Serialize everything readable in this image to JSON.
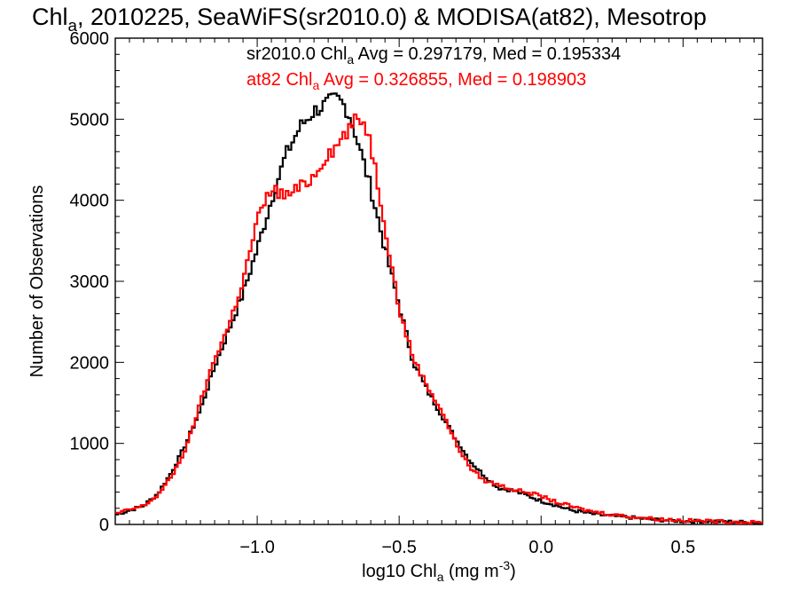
{
  "chart_data": {
    "type": "line",
    "step": true,
    "title": {
      "pre": "Chl",
      "sub": "a",
      "post": ", 2010225, SeaWiFS(sr2010.0) & MODISA(at82), Mesotrop"
    },
    "xlabel": {
      "pre": "log10 Chl",
      "sub": "a",
      "mid": " (mg m",
      "sup": "-3",
      "post": ")"
    },
    "ylabel": "Number of Observations",
    "xlim": [
      -1.5,
      0.78
    ],
    "ylim": [
      0,
      6000
    ],
    "xticks": [
      {
        "v": -1.0,
        "label": "−1.0"
      },
      {
        "v": -0.5,
        "label": "−0.5"
      },
      {
        "v": 0.0,
        "label": "0.0"
      },
      {
        "v": 0.5,
        "label": "0.5"
      }
    ],
    "yticks": [
      {
        "v": 0,
        "label": "0"
      },
      {
        "v": 1000,
        "label": "1000"
      },
      {
        "v": 2000,
        "label": "2000"
      },
      {
        "v": 3000,
        "label": "3000"
      },
      {
        "v": 4000,
        "label": "4000"
      },
      {
        "v": 5000,
        "label": "5000"
      },
      {
        "v": 6000,
        "label": "6000"
      }
    ],
    "grid": false,
    "legend_placement": "top",
    "series": [
      {
        "name": "sr2010.0",
        "color": "#000000",
        "label": {
          "pre": "sr2010.0 Chl",
          "sub": "a",
          "post": " Avg = 0.297179, Med = 0.195334"
        },
        "x": [
          -1.5,
          -1.4,
          -1.35,
          -1.3,
          -1.25,
          -1.2,
          -1.15,
          -1.1,
          -1.05,
          -1.0,
          -0.95,
          -0.9,
          -0.85,
          -0.8,
          -0.75,
          -0.72,
          -0.7,
          -0.68,
          -0.66,
          -0.64,
          -0.62,
          -0.6,
          -0.55,
          -0.5,
          -0.45,
          -0.4,
          -0.35,
          -0.3,
          -0.25,
          -0.2,
          -0.15,
          -0.1,
          -0.05,
          0.0,
          0.05,
          0.1,
          0.15,
          0.2,
          0.3,
          0.4,
          0.5,
          0.6,
          0.7,
          0.78
        ],
        "y": [
          120,
          230,
          380,
          650,
          1000,
          1420,
          1950,
          2400,
          2850,
          3400,
          4000,
          4550,
          4900,
          5100,
          5200,
          5250,
          5200,
          5100,
          4900,
          4650,
          4400,
          4150,
          3400,
          2700,
          2000,
          1650,
          1350,
          1050,
          780,
          600,
          450,
          420,
          360,
          290,
          240,
          180,
          150,
          120,
          90,
          60,
          40,
          40,
          30,
          20
        ]
      },
      {
        "name": "at82",
        "color": "#ff0000",
        "label": {
          "pre": "at82 Chl",
          "sub": "a",
          "post": " Avg = 0.326855, Med = 0.198903"
        },
        "x": [
          -1.5,
          -1.4,
          -1.35,
          -1.3,
          -1.25,
          -1.2,
          -1.15,
          -1.1,
          -1.05,
          -1.0,
          -0.95,
          -0.9,
          -0.85,
          -0.8,
          -0.75,
          -0.72,
          -0.7,
          -0.68,
          -0.66,
          -0.64,
          -0.62,
          -0.6,
          -0.55,
          -0.5,
          -0.45,
          -0.4,
          -0.35,
          -0.3,
          -0.25,
          -0.2,
          -0.15,
          -0.1,
          -0.05,
          0.0,
          0.05,
          0.1,
          0.15,
          0.2,
          0.3,
          0.4,
          0.5,
          0.6,
          0.7,
          0.78
        ],
        "y": [
          130,
          230,
          360,
          600,
          940,
          1500,
          2050,
          2450,
          3000,
          3750,
          4150,
          4050,
          4150,
          4300,
          4600,
          4650,
          4800,
          4850,
          4950,
          5000,
          4950,
          4700,
          3700,
          2650,
          2050,
          1700,
          1400,
          1000,
          700,
          540,
          490,
          430,
          400,
          350,
          280,
          230,
          180,
          150,
          100,
          70,
          50,
          40,
          30,
          20
        ]
      }
    ]
  }
}
